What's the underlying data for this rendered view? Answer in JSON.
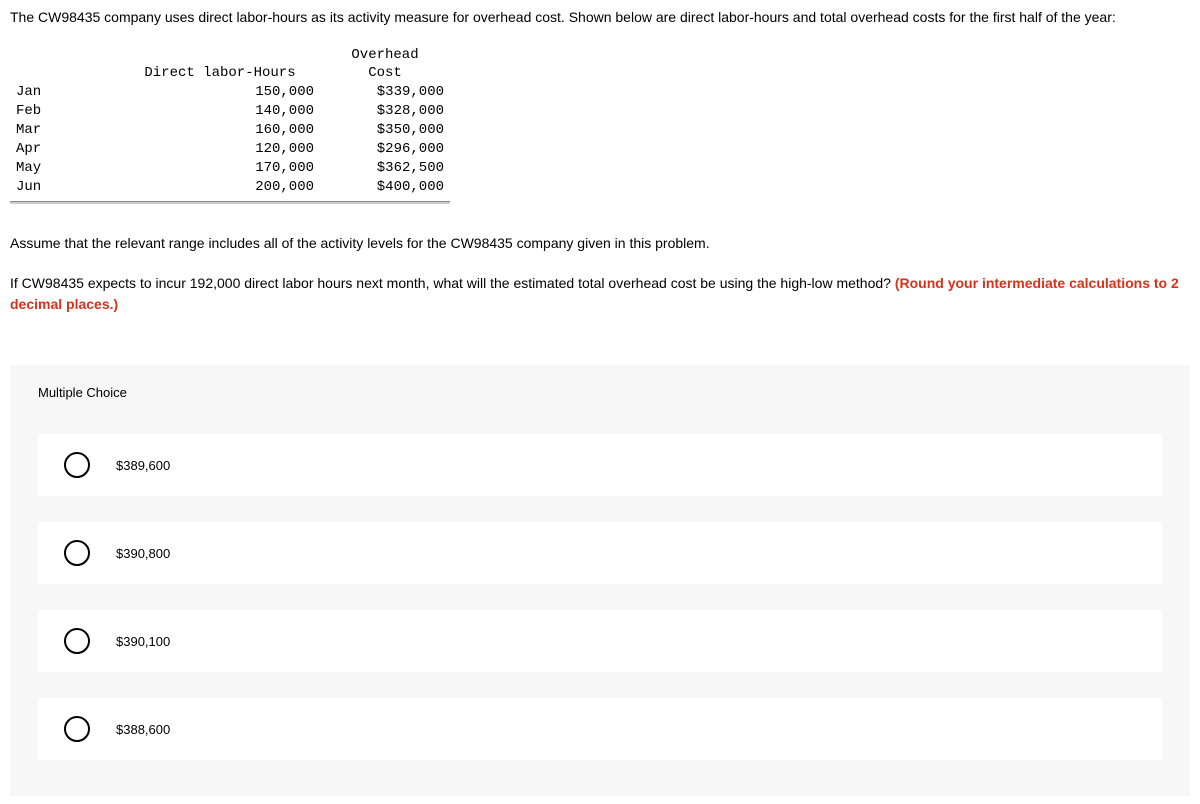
{
  "intro": "The CW98435 company uses direct labor-hours as its activity measure for overhead cost. Shown below are direct labor-hours and total overhead costs for the first half of the year:",
  "table": {
    "headers": {
      "month": "",
      "hours": "Direct labor-Hours",
      "cost_line1": "Overhead",
      "cost_line2": "Cost"
    },
    "rows": [
      {
        "month": "Jan",
        "hours": "150,000",
        "cost": "$339,000"
      },
      {
        "month": "Feb",
        "hours": "140,000",
        "cost": "$328,000"
      },
      {
        "month": "Mar",
        "hours": "160,000",
        "cost": "$350,000"
      },
      {
        "month": "Apr",
        "hours": "120,000",
        "cost": "$296,000"
      },
      {
        "month": "May",
        "hours": "170,000",
        "cost": "$362,500"
      },
      {
        "month": "Jun",
        "hours": "200,000",
        "cost": "$400,000"
      }
    ]
  },
  "assume": "Assume that the relevant range includes all of the activity levels for the CW98435 company given in this problem.",
  "question_part1": "If CW98435 expects to incur 192,000 direct labor hours next month, what will the estimated total overhead cost be using the high-low method? ",
  "question_emphasis": "(Round your intermediate calculations to 2 decimal places.)",
  "mc": {
    "title": "Multiple Choice",
    "options": [
      "$389,600",
      "$390,800",
      "$390,100",
      "$388,600"
    ]
  },
  "colors": {
    "emphasis": "#d9311a",
    "option_bg": "#ffffff",
    "container_bg": "#f7f7f7",
    "radio_border": "#000000"
  }
}
